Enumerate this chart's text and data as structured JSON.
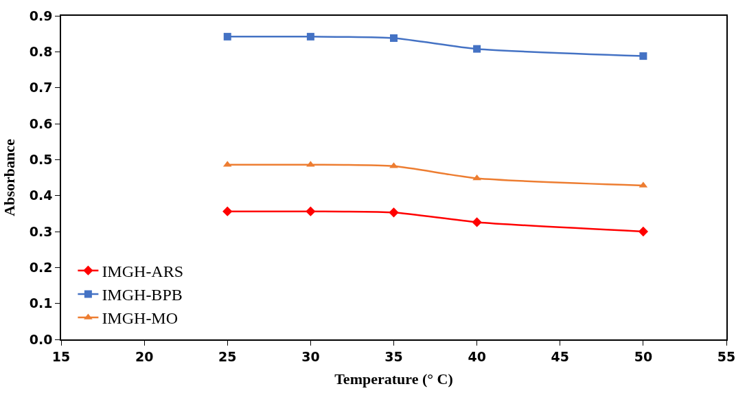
{
  "chart_data": {
    "type": "line",
    "xlabel": "Temperature (° C)",
    "ylabel": "Absorbance",
    "x": [
      25,
      30,
      35,
      40,
      50
    ],
    "series": [
      {
        "name": "IMGH-ARS",
        "color": "#ff0000",
        "marker": "diamond",
        "values": [
          0.356,
          0.356,
          0.353,
          0.326,
          0.3
        ]
      },
      {
        "name": "IMGH-BPB",
        "color": "#4472c4",
        "marker": "square",
        "values": [
          0.842,
          0.842,
          0.838,
          0.808,
          0.788
        ]
      },
      {
        "name": "IMGH-MO",
        "color": "#ed7d31",
        "marker": "triangle",
        "values": [
          0.486,
          0.486,
          0.482,
          0.448,
          0.428
        ]
      }
    ],
    "xlim": [
      15,
      55
    ],
    "xticks": [
      15,
      20,
      25,
      30,
      35,
      40,
      45,
      50,
      55
    ],
    "ylim": [
      0,
      0.9
    ],
    "yticks": [
      {
        "value": 0,
        "label": "0.0"
      },
      0.1,
      0.2,
      0.3,
      0.4,
      0.5,
      0.6,
      0.7,
      0.8,
      0.9
    ],
    "legend": "bottom left",
    "line_style": "solid"
  }
}
